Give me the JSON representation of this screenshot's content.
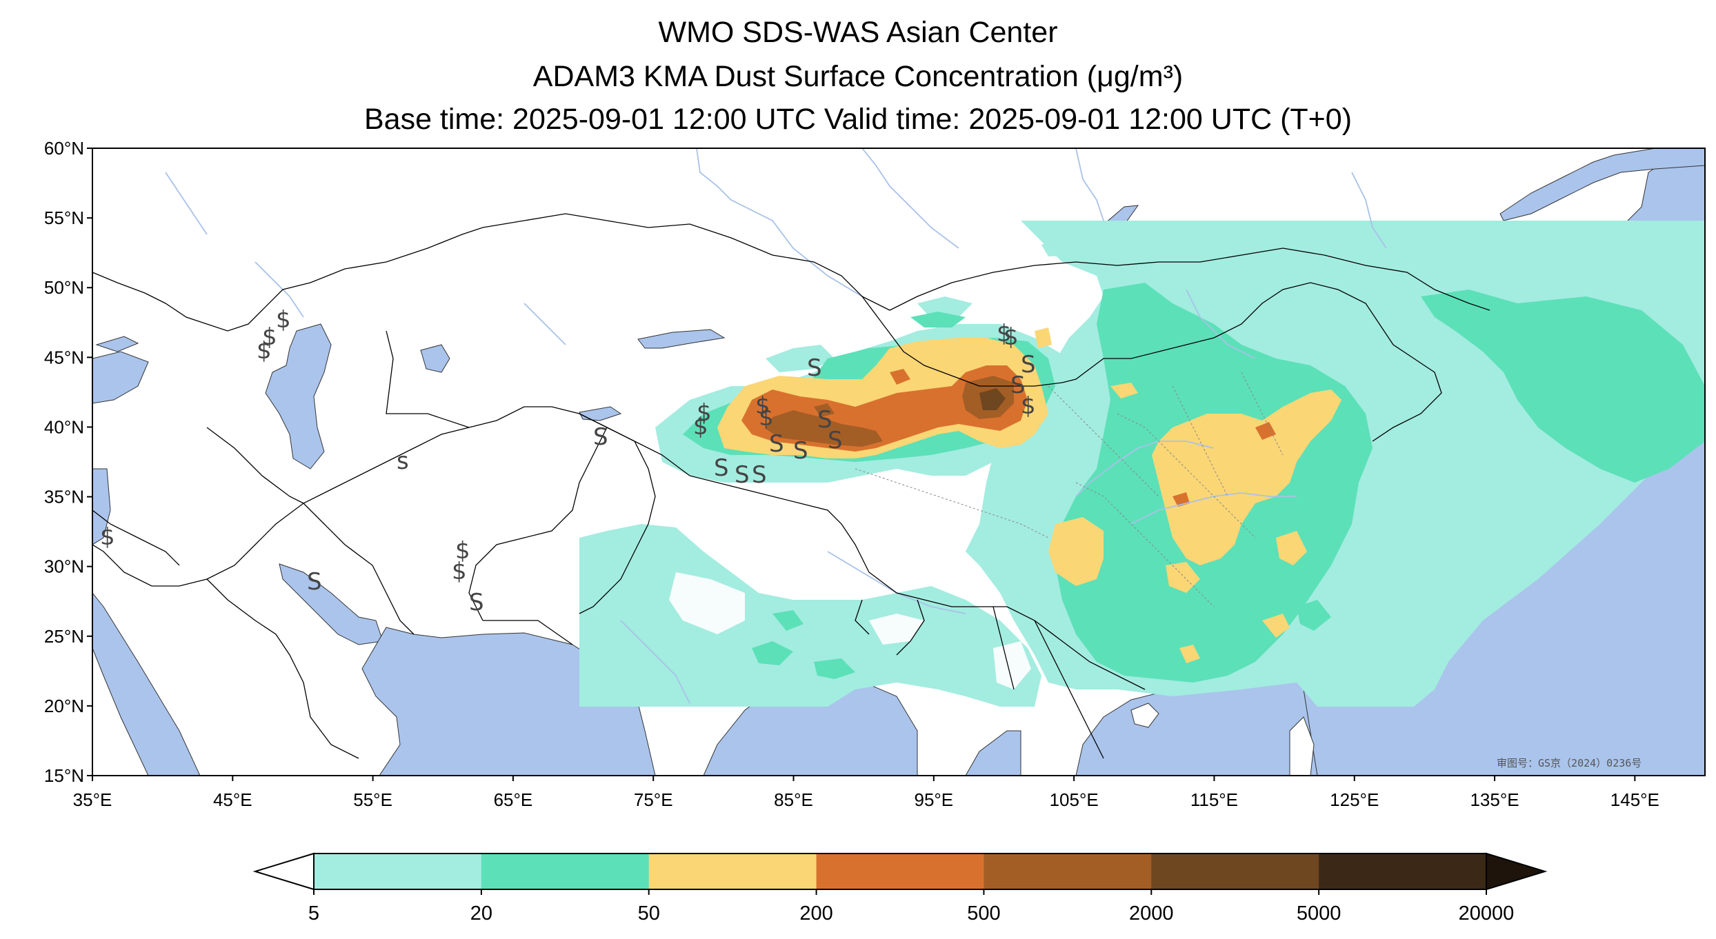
{
  "title": {
    "line1": "WMO SDS-WAS Asian Center",
    "line2": "ADAM3 KMA Dust Surface Concentration (μg/m³)",
    "line3": "Base time: 2025-09-01 12:00 UTC Valid time: 2025-09-01 12:00 UTC (T+0)"
  },
  "map": {
    "extent": {
      "lon_min": 35,
      "lon_max": 150,
      "lat_min": 15,
      "lat_max": 60
    },
    "lat_ticks": [
      "15°N",
      "20°N",
      "25°N",
      "30°N",
      "35°N",
      "40°N",
      "45°N",
      "50°N",
      "55°N",
      "60°N"
    ],
    "lon_ticks": [
      "35°E",
      "45°E",
      "55°E",
      "65°E",
      "75°E",
      "85°E",
      "95°E",
      "105°E",
      "115°E",
      "125°E",
      "135°E",
      "145°E"
    ],
    "approval_note": "审图号：GS京（2024）0236号",
    "colors": {
      "water": "#aac4ec",
      "border": "#000000",
      "river": "#a9c2e8"
    }
  },
  "colorbar": {
    "levels": [
      "5",
      "20",
      "50",
      "200",
      "500",
      "2000",
      "5000",
      "20000"
    ],
    "colors": [
      "#a3ece0",
      "#5ce0b8",
      "#fad675",
      "#d9712e",
      "#a35e26",
      "#6e4620",
      "#3c2816"
    ],
    "over_color": "#1e140c",
    "under_color": "#ffffff"
  }
}
